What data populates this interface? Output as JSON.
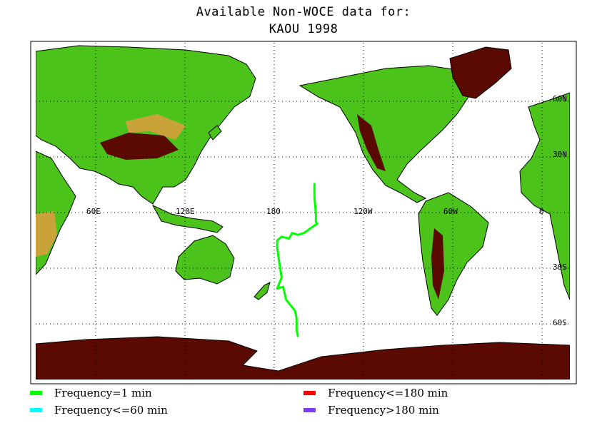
{
  "title_line1": "Available Non-WOCE data for:",
  "title_line2": "KAOU 1998",
  "map": {
    "lon_labels": [
      "60E",
      "120E",
      "180",
      "120W",
      "60W",
      "0"
    ],
    "lat_labels": [
      "60N",
      "30N",
      "30S",
      "60S"
    ],
    "land_color": "#4cc31a",
    "high_color": "#5a0a00",
    "track_color": "#00ff00",
    "track": [
      [
        -153,
        16
      ],
      [
        -153,
        8
      ],
      [
        -152,
        0
      ],
      [
        -152,
        -5
      ],
      [
        -151,
        -6
      ],
      [
        -153,
        -7
      ],
      [
        -160,
        -11
      ],
      [
        -164,
        -12
      ],
      [
        -168,
        -11
      ],
      [
        -170,
        -14
      ],
      [
        -175,
        -13
      ],
      [
        -178,
        -15
      ],
      [
        -178,
        -19
      ],
      [
        -177,
        -25
      ],
      [
        -176,
        -30
      ],
      [
        -175,
        -35
      ],
      [
        -178,
        -41
      ],
      [
        -174,
        -40
      ],
      [
        -172,
        -47
      ],
      [
        -166,
        -53
      ],
      [
        -165,
        -57
      ],
      [
        -165,
        -63
      ],
      [
        -164,
        -67
      ]
    ]
  },
  "legend": [
    {
      "label": "Frequency=1 min",
      "color": "#00ff00"
    },
    {
      "label": "Frequency<=60 min",
      "color": "#00ffff"
    },
    {
      "label": "Frequency<=180 min",
      "color": "#ff0000"
    },
    {
      "label": "Frequency>180 min",
      "color": "#7a3dff"
    }
  ]
}
